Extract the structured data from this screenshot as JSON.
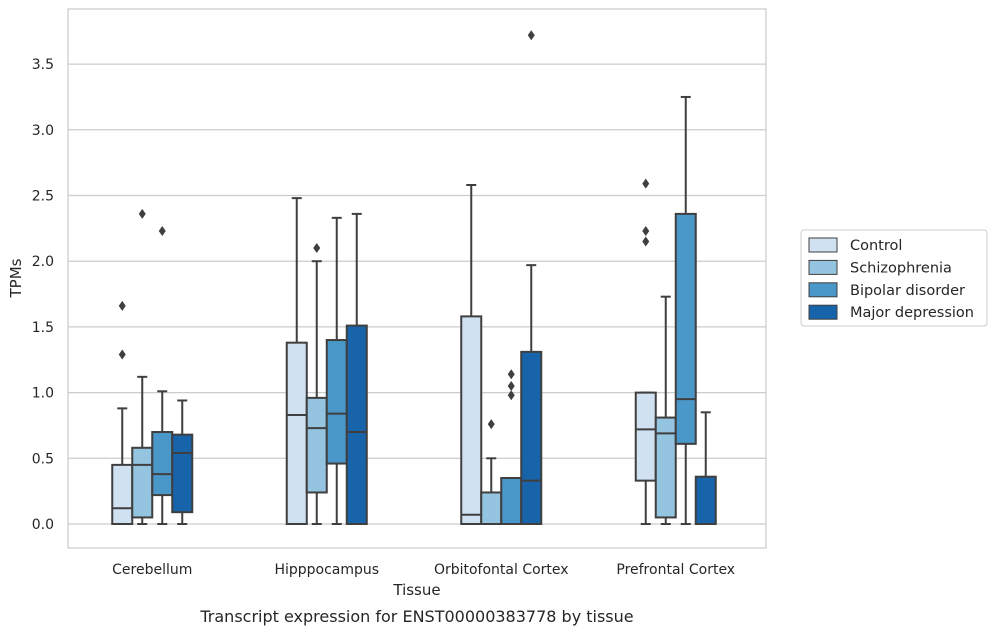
{
  "chart_data": {
    "type": "box",
    "xlabel": "Tissue",
    "ylabel": "TPMs",
    "caption": "Transcript expression for ENST00000383778 by tissue",
    "ylim": [
      -0.18,
      3.92
    ],
    "yticks": [
      "0.0",
      "0.5",
      "1.0",
      "1.5",
      "2.0",
      "2.5",
      "3.0",
      "3.5"
    ],
    "grid": "horizontal",
    "legend_position": "right",
    "categories": [
      "Cerebellum",
      "Hipppocampus",
      "Orbitofontal Cortex",
      "Prefrontal Cortex"
    ],
    "series": [
      {
        "name": "Control",
        "color": "#d0e1f2",
        "boxes": [
          {
            "min": 0.0,
            "q1": 0.0,
            "median": 0.12,
            "q3": 0.45,
            "max": 0.88,
            "outliers": [
              1.29,
              1.66
            ]
          },
          {
            "min": 0.0,
            "q1": 0.0,
            "median": 0.83,
            "q3": 1.38,
            "max": 2.48,
            "outliers": []
          },
          {
            "min": 0.0,
            "q1": 0.0,
            "median": 0.07,
            "q3": 1.58,
            "max": 2.58,
            "outliers": []
          },
          {
            "min": 0.0,
            "q1": 0.33,
            "median": 0.72,
            "q3": 1.0,
            "max": 1.0,
            "outliers": [
              2.15,
              2.23,
              2.59
            ]
          }
        ]
      },
      {
        "name": "Schizophrenia",
        "color": "#94c4df",
        "boxes": [
          {
            "min": 0.0,
            "q1": 0.05,
            "median": 0.45,
            "q3": 0.58,
            "max": 1.12,
            "outliers": [
              2.36
            ]
          },
          {
            "min": 0.0,
            "q1": 0.24,
            "median": 0.73,
            "q3": 0.96,
            "max": 2.0,
            "outliers": [
              2.1
            ]
          },
          {
            "min": 0.0,
            "q1": 0.0,
            "median": 0.0,
            "q3": 0.24,
            "max": 0.5,
            "outliers": [
              0.76
            ]
          },
          {
            "min": 0.0,
            "q1": 0.05,
            "median": 0.69,
            "q3": 0.81,
            "max": 1.73,
            "outliers": []
          }
        ]
      },
      {
        "name": "Bipolar disorder",
        "color": "#4a98c9",
        "boxes": [
          {
            "min": 0.0,
            "q1": 0.22,
            "median": 0.38,
            "q3": 0.7,
            "max": 1.01,
            "outliers": [
              2.23
            ]
          },
          {
            "min": 0.0,
            "q1": 0.46,
            "median": 0.84,
            "q3": 1.4,
            "max": 2.33,
            "outliers": []
          },
          {
            "min": 0.0,
            "q1": 0.0,
            "median": 0.35,
            "q3": 0.35,
            "max": 0.35,
            "outliers": [
              0.98,
              1.05,
              1.14
            ]
          },
          {
            "min": 0.0,
            "q1": 0.61,
            "median": 0.95,
            "q3": 2.36,
            "max": 3.25,
            "outliers": []
          }
        ]
      },
      {
        "name": "Major depression",
        "color": "#1764ab",
        "boxes": [
          {
            "min": 0.0,
            "q1": 0.09,
            "median": 0.54,
            "q3": 0.68,
            "max": 0.94,
            "outliers": []
          },
          {
            "min": 0.0,
            "q1": 0.0,
            "median": 0.7,
            "q3": 1.51,
            "max": 2.36,
            "outliers": []
          },
          {
            "min": 0.0,
            "q1": 0.0,
            "median": 0.33,
            "q3": 1.31,
            "max": 1.97,
            "outliers": [
              3.72
            ]
          },
          {
            "min": 0.0,
            "q1": 0.0,
            "median": 0.0,
            "q3": 0.36,
            "max": 0.85,
            "outliers": []
          }
        ]
      }
    ]
  }
}
